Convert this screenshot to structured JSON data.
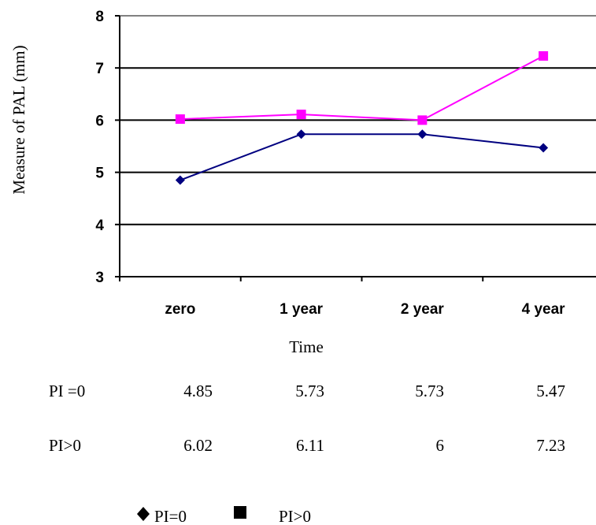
{
  "chart_data": {
    "type": "line",
    "categories": [
      "zero",
      "1 year",
      "2 year",
      "4 year"
    ],
    "xlabel": "Time",
    "ylabel": "Measure of  PAL (mm)",
    "ylim": [
      3,
      8
    ],
    "yticks": [
      "3",
      "4",
      "5",
      "6",
      "7",
      "8"
    ],
    "grid": true,
    "series": [
      {
        "name": "PI=0",
        "table_label": "PI =0",
        "values": [
          4.85,
          5.73,
          5.73,
          5.47
        ],
        "value_labels": [
          "4.85",
          "5.73",
          "5.73",
          "5.47"
        ],
        "color": "#000080",
        "marker": "diamond"
      },
      {
        "name": "PI>0",
        "table_label": "PI>0",
        "values": [
          6.02,
          6.11,
          6,
          7.23
        ],
        "value_labels": [
          "6.02",
          "6.11",
          "6",
          "7.23"
        ],
        "color": "#ff00ff",
        "marker": "square"
      }
    ],
    "legend": {
      "placement": "bottom",
      "entries": [
        "PI=0",
        "PI>0"
      ],
      "marker_color": "#000000"
    }
  }
}
